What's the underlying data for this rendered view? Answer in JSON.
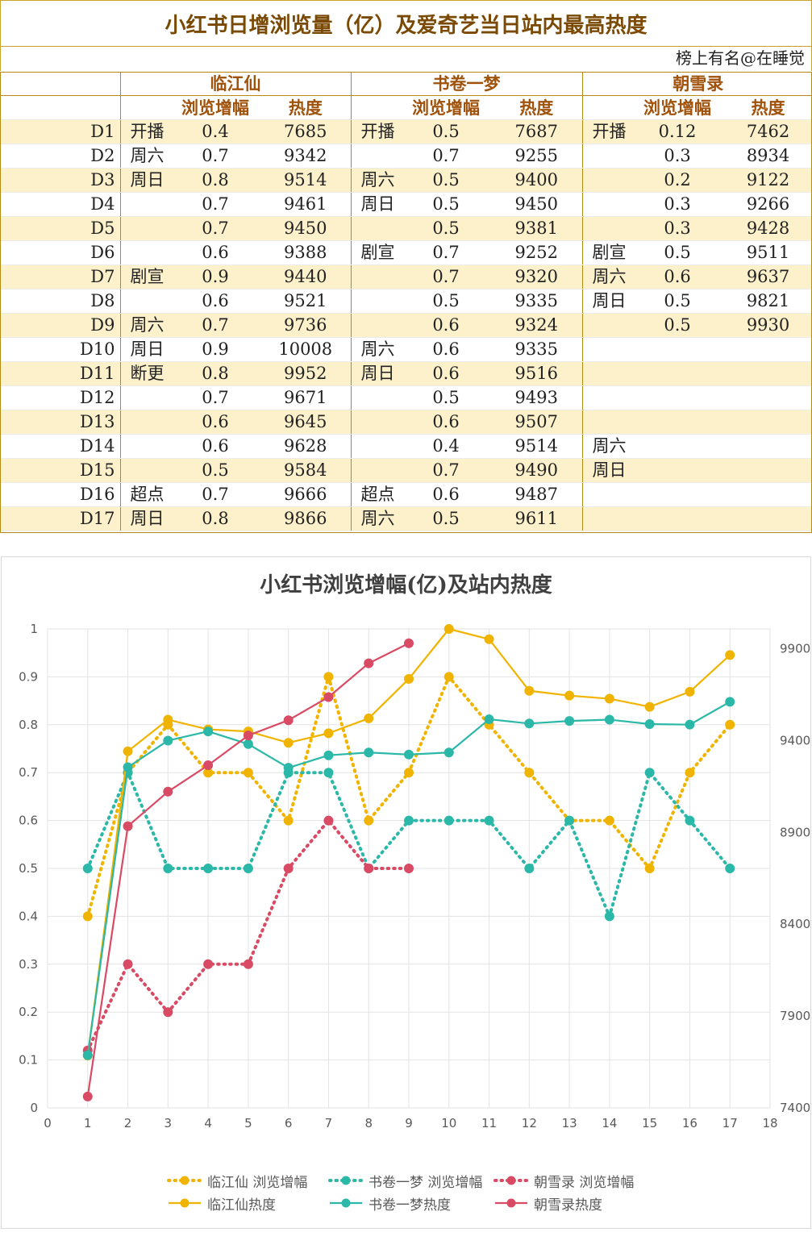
{
  "sheet": {
    "title": "小红书日增浏览量（亿）及爱奇艺当日站内最高热度",
    "signature": "榜上有名@在睡觉",
    "shows": [
      "临江仙",
      "书卷一梦",
      "朝雪录"
    ],
    "col_headers": {
      "growth": "浏览增幅",
      "heat": "热度"
    },
    "rows": [
      {
        "day": "D1",
        "a_tag": "开播",
        "a_g": "0.4",
        "a_h": "7685",
        "b_tag": "开播",
        "b_g": "0.5",
        "b_h": "7687",
        "c_tag": "开播",
        "c_g": "0.12",
        "c_h": "7462"
      },
      {
        "day": "D2",
        "a_tag": "周六",
        "a_g": "0.7",
        "a_h": "9342",
        "b_tag": "",
        "b_g": "0.7",
        "b_h": "9255",
        "c_tag": "",
        "c_g": "0.3",
        "c_h": "8934"
      },
      {
        "day": "D3",
        "a_tag": "周日",
        "a_g": "0.8",
        "a_h": "9514",
        "b_tag": "周六",
        "b_g": "0.5",
        "b_h": "9400",
        "c_tag": "",
        "c_g": "0.2",
        "c_h": "9122"
      },
      {
        "day": "D4",
        "a_tag": "",
        "a_g": "0.7",
        "a_h": "9461",
        "b_tag": "周日",
        "b_g": "0.5",
        "b_h": "9450",
        "c_tag": "",
        "c_g": "0.3",
        "c_h": "9266"
      },
      {
        "day": "D5",
        "a_tag": "",
        "a_g": "0.7",
        "a_h": "9450",
        "b_tag": "",
        "b_g": "0.5",
        "b_h": "9381",
        "c_tag": "",
        "c_g": "0.3",
        "c_h": "9428"
      },
      {
        "day": "D6",
        "a_tag": "",
        "a_g": "0.6",
        "a_h": "9388",
        "b_tag": "剧宣",
        "b_g": "0.7",
        "b_h": "9252",
        "c_tag": "剧宣",
        "c_g": "0.5",
        "c_h": "9511"
      },
      {
        "day": "D7",
        "a_tag": "剧宣",
        "a_g": "0.9",
        "a_h": "9440",
        "b_tag": "",
        "b_g": "0.7",
        "b_h": "9320",
        "c_tag": "周六",
        "c_g": "0.6",
        "c_h": "9637"
      },
      {
        "day": "D8",
        "a_tag": "",
        "a_g": "0.6",
        "a_h": "9521",
        "b_tag": "",
        "b_g": "0.5",
        "b_h": "9335",
        "c_tag": "周日",
        "c_g": "0.5",
        "c_h": "9821"
      },
      {
        "day": "D9",
        "a_tag": "周六",
        "a_g": "0.7",
        "a_h": "9736",
        "b_tag": "",
        "b_g": "0.6",
        "b_h": "9324",
        "c_tag": "",
        "c_g": "0.5",
        "c_h": "9930"
      },
      {
        "day": "D10",
        "a_tag": "周日",
        "a_g": "0.9",
        "a_h": "10008",
        "b_tag": "周六",
        "b_g": "0.6",
        "b_h": "9335",
        "c_tag": "",
        "c_g": "",
        "c_h": ""
      },
      {
        "day": "D11",
        "a_tag": "断更",
        "a_g": "0.8",
        "a_h": "9952",
        "b_tag": "周日",
        "b_g": "0.6",
        "b_h": "9516",
        "c_tag": "",
        "c_g": "",
        "c_h": ""
      },
      {
        "day": "D12",
        "a_tag": "",
        "a_g": "0.7",
        "a_h": "9671",
        "b_tag": "",
        "b_g": "0.5",
        "b_h": "9493",
        "c_tag": "",
        "c_g": "",
        "c_h": ""
      },
      {
        "day": "D13",
        "a_tag": "",
        "a_g": "0.6",
        "a_h": "9645",
        "b_tag": "",
        "b_g": "0.6",
        "b_h": "9507",
        "c_tag": "",
        "c_g": "",
        "c_h": ""
      },
      {
        "day": "D14",
        "a_tag": "",
        "a_g": "0.6",
        "a_h": "9628",
        "b_tag": "",
        "b_g": "0.4",
        "b_h": "9514",
        "c_tag": "周六",
        "c_g": "",
        "c_h": ""
      },
      {
        "day": "D15",
        "a_tag": "",
        "a_g": "0.5",
        "a_h": "9584",
        "b_tag": "",
        "b_g": "0.7",
        "b_h": "9490",
        "c_tag": "周日",
        "c_g": "",
        "c_h": ""
      },
      {
        "day": "D16",
        "a_tag": "超点",
        "a_g": "0.7",
        "a_h": "9666",
        "b_tag": "超点",
        "b_g": "0.6",
        "b_h": "9487",
        "c_tag": "",
        "c_g": "",
        "c_h": ""
      },
      {
        "day": "D17",
        "a_tag": "周日",
        "a_g": "0.8",
        "a_h": "9866",
        "b_tag": "周六",
        "b_g": "0.5",
        "b_h": "9611",
        "c_tag": "",
        "c_g": "",
        "c_h": ""
      }
    ]
  },
  "colors": {
    "gold": "#f0b400",
    "teal": "#2bb8a8",
    "red": "#d94a64",
    "header_text": "#a0520a",
    "stripe": "#fdf1cc",
    "border": "#b58b12"
  },
  "chart_data": {
    "type": "line",
    "title": "小红书浏览增幅(亿)及站内热度",
    "xlabel": "",
    "ylabel": "",
    "x_ticks": [
      0,
      1,
      2,
      3,
      4,
      5,
      6,
      7,
      8,
      9,
      10,
      11,
      12,
      13,
      14,
      15,
      16,
      17,
      18
    ],
    "xlim": [
      0,
      18
    ],
    "y_left_ticks": [
      "0",
      "0.1",
      "0.2",
      "0.3",
      "0.4",
      "0.5",
      "0.6",
      "0.7",
      "0.8",
      "0.9",
      "1"
    ],
    "ylim_left": [
      0,
      1
    ],
    "y_right_ticks": [
      "7400",
      "7900",
      "8400",
      "8900",
      "9400",
      "9900"
    ],
    "ylim_right": [
      7400,
      10008
    ],
    "grid": true,
    "legend_position": "bottom",
    "series": [
      {
        "name": "临江仙 浏览增幅",
        "axis": "left",
        "style": "dotted",
        "color": "#f0b400",
        "x": [
          1,
          2,
          3,
          4,
          5,
          6,
          7,
          8,
          9,
          10,
          11,
          12,
          13,
          14,
          15,
          16,
          17
        ],
        "values": [
          0.4,
          0.7,
          0.8,
          0.7,
          0.7,
          0.6,
          0.9,
          0.6,
          0.7,
          0.9,
          0.8,
          0.7,
          0.6,
          0.6,
          0.5,
          0.7,
          0.8
        ]
      },
      {
        "name": "书卷一梦 浏览增幅",
        "axis": "left",
        "style": "dotted",
        "color": "#2bb8a8",
        "x": [
          1,
          2,
          3,
          4,
          5,
          6,
          7,
          8,
          9,
          10,
          11,
          12,
          13,
          14,
          15,
          16,
          17
        ],
        "values": [
          0.5,
          0.7,
          0.5,
          0.5,
          0.5,
          0.7,
          0.7,
          0.5,
          0.6,
          0.6,
          0.6,
          0.5,
          0.6,
          0.4,
          0.7,
          0.6,
          0.5
        ]
      },
      {
        "name": "朝雪录 浏览增幅",
        "axis": "left",
        "style": "dotted",
        "color": "#d94a64",
        "x": [
          1,
          2,
          3,
          4,
          5,
          6,
          7,
          8,
          9
        ],
        "values": [
          0.12,
          0.3,
          0.2,
          0.3,
          0.3,
          0.5,
          0.6,
          0.5,
          0.5
        ]
      },
      {
        "name": "临江仙热度",
        "axis": "right",
        "style": "solid",
        "color": "#f0b400",
        "x": [
          1,
          2,
          3,
          4,
          5,
          6,
          7,
          8,
          9,
          10,
          11,
          12,
          13,
          14,
          15,
          16,
          17
        ],
        "values": [
          7685,
          9342,
          9514,
          9461,
          9450,
          9388,
          9440,
          9521,
          9736,
          10008,
          9952,
          9671,
          9645,
          9628,
          9584,
          9666,
          9866
        ]
      },
      {
        "name": "书卷一梦热度",
        "axis": "right",
        "style": "solid",
        "color": "#2bb8a8",
        "x": [
          1,
          2,
          3,
          4,
          5,
          6,
          7,
          8,
          9,
          10,
          11,
          12,
          13,
          14,
          15,
          16,
          17
        ],
        "values": [
          7687,
          9255,
          9400,
          9450,
          9381,
          9252,
          9320,
          9335,
          9324,
          9335,
          9516,
          9493,
          9507,
          9514,
          9490,
          9487,
          9611
        ]
      },
      {
        "name": "朝雪录热度",
        "axis": "right",
        "style": "solid",
        "color": "#d94a64",
        "x": [
          1,
          2,
          3,
          4,
          5,
          6,
          7,
          8,
          9
        ],
        "values": [
          7462,
          8934,
          9122,
          9266,
          9428,
          9511,
          9637,
          9821,
          9930
        ]
      }
    ]
  }
}
